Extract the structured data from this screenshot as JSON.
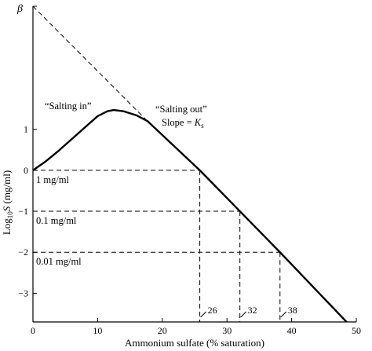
{
  "chart_data": {
    "type": "line",
    "title": "",
    "xlabel": "Ammonium sulfate (% saturation)",
    "ylabel_parts": {
      "prefix": "Log",
      "sub": "10",
      "var": "S",
      "suffix": " (mg/ml)"
    },
    "xlim": [
      0,
      50
    ],
    "ylim": [
      -3.7,
      4
    ],
    "x_ticks": [
      0,
      10,
      20,
      30,
      40,
      50
    ],
    "y_ticks": [
      -3,
      -2,
      -1,
      0,
      1
    ],
    "y_ticks_text": [
      "−3",
      "−2",
      "−1",
      "0",
      "1"
    ],
    "beta_label": "β",
    "beta_value": 4,
    "series": [
      {
        "values_xy": [
          [
            0,
            0
          ],
          [
            2,
            0.22
          ],
          [
            4,
            0.48
          ],
          [
            6,
            0.76
          ],
          [
            8,
            1.04
          ],
          [
            10,
            1.32
          ],
          [
            11.5,
            1.44
          ],
          [
            12.5,
            1.47
          ],
          [
            14,
            1.44
          ],
          [
            16,
            1.34
          ],
          [
            17.7,
            1.2
          ],
          [
            25.8,
            0
          ],
          [
            32,
            -1
          ],
          [
            38.2,
            -2
          ],
          [
            48.5,
            -3.7
          ]
        ]
      }
    ],
    "extrapolation": {
      "from": [
        0,
        4
      ],
      "to": [
        17.7,
        1.2
      ]
    },
    "concentration_lines": [
      {
        "y": 0,
        "x": 25.8,
        "label": "1 mg/ml",
        "x_label": "26"
      },
      {
        "y": -1,
        "x": 32,
        "label": "0.1 mg/ml",
        "x_label": "32"
      },
      {
        "y": -2,
        "x": 38.2,
        "label": "0.01 mg/ml",
        "x_label": "38"
      }
    ],
    "annotations": {
      "salting_in": "“Salting in”",
      "salting_out": "“Salting out”",
      "slope_text": "Slope = ",
      "slope_var": "K",
      "slope_sub": "s"
    }
  }
}
